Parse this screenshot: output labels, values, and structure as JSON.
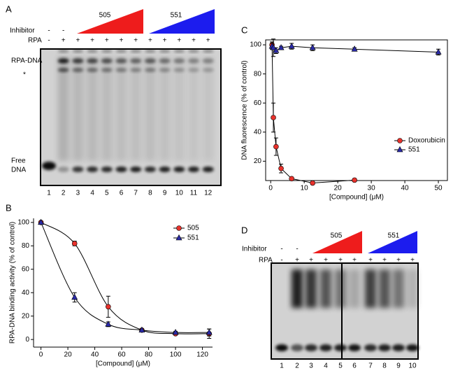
{
  "panel_a": {
    "label": "A",
    "inhibitor_label": "Inhibitor",
    "rpa_label": "RPA",
    "inhibitor_signs": [
      "-",
      "-"
    ],
    "rpa_signs": [
      "-",
      "+",
      "+",
      "+",
      "+",
      "+",
      "+",
      "+",
      "+",
      "+",
      "+",
      "+"
    ],
    "compound_labels": [
      "505",
      "551"
    ],
    "band_labels": [
      "RPA-DNA",
      "*",
      "Free",
      "DNA"
    ],
    "lanes": [
      "1",
      "2",
      "3",
      "4",
      "5",
      "6",
      "7",
      "8",
      "9",
      "10",
      "11",
      "12"
    ]
  },
  "chart_data": [
    {
      "type": "line",
      "panel": "B",
      "x_label": "[Compound] (μM)",
      "y_label": "RPA-DNA binding activity (% of control)",
      "xlim": [
        -5.5,
        127.5
      ],
      "ylim": [
        -6.5,
        103.5
      ],
      "xticks": [
        0,
        20,
        40,
        60,
        80,
        100,
        120
      ],
      "yticks": [
        0,
        20,
        40,
        60,
        80,
        100
      ],
      "legend": "upper right",
      "smooth": true,
      "series": [
        {
          "name": "505",
          "color": "#e8322c",
          "marker": "circle",
          "x": [
            0,
            25,
            50,
            75,
            100,
            125
          ],
          "values": [
            100,
            82,
            28,
            8,
            5,
            5
          ],
          "errors": [
            null,
            2,
            9,
            1,
            1,
            4
          ]
        },
        {
          "name": "551",
          "color": "#2a2aa8",
          "marker": "triangle",
          "x": [
            0,
            25,
            50,
            75,
            100,
            125
          ],
          "values": [
            100,
            36,
            13,
            8,
            6,
            6
          ],
          "errors": [
            null,
            4,
            2,
            1,
            1,
            3
          ]
        }
      ]
    },
    {
      "type": "line",
      "panel": "C",
      "x_label": "[Compound] (μM)",
      "y_label": "DNA fluorescence (% of control)",
      "xlim": [
        -1.5,
        52.7
      ],
      "ylim": [
        6.7,
        103.4
      ],
      "xticks": [
        0,
        10,
        20,
        30,
        40,
        50
      ],
      "yticks": [
        20,
        40,
        60,
        80,
        100
      ],
      "legend": "lower right",
      "smooth": false,
      "series": [
        {
          "name": "Doxorubicin",
          "color": "#e8322c",
          "marker": "circle",
          "x": [
            0.4,
            0.8,
            1.6,
            3.1,
            6.25,
            12.5,
            25
          ],
          "values": [
            100,
            50,
            30,
            15,
            8,
            5,
            7
          ],
          "errors": [
            2,
            10,
            6,
            3,
            1,
            1,
            1
          ]
        },
        {
          "name": "551",
          "color": "#2a2aa8",
          "marker": "triangle",
          "x": [
            0.4,
            0.8,
            1.6,
            3.1,
            6.25,
            12.5,
            25,
            50
          ],
          "values": [
            99,
            98,
            96,
            98,
            99,
            98,
            97,
            95
          ],
          "errors": [
            2,
            6,
            2,
            1,
            2,
            2,
            1,
            2
          ]
        }
      ]
    }
  ],
  "panel_d": {
    "label": "D",
    "inhibitor_label": "Inhibitor",
    "rpa_label": "RPA",
    "inhibitor_signs": [
      "-",
      "-"
    ],
    "rpa_signs": [
      "-",
      "+",
      "+",
      "+",
      "+",
      "+",
      "+",
      "+",
      "+",
      "+"
    ],
    "compound_labels": [
      "505",
      "551"
    ],
    "lanes": [
      "1",
      "2",
      "3",
      "4",
      "5",
      "6",
      "7",
      "8",
      "9",
      "10"
    ]
  }
}
